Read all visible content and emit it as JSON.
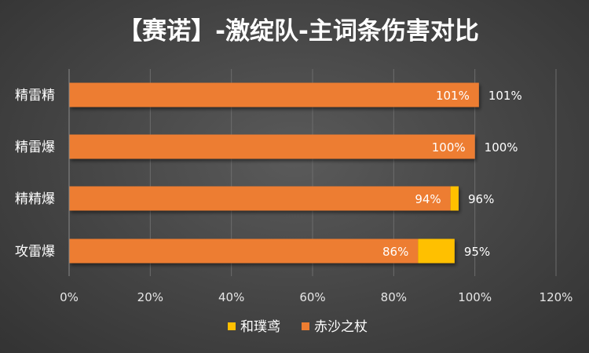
{
  "chart_data": {
    "type": "bar",
    "orientation": "horizontal",
    "stacked": true,
    "title": "【赛诺】-激绽队-主词条伤害对比",
    "categories": [
      "精雷精",
      "精雷爆",
      "精精爆",
      "攻雷爆"
    ],
    "series": [
      {
        "name": "赤沙之杖",
        "color": "#ED7D31",
        "values": [
          101,
          100,
          94,
          86
        ],
        "labels": [
          "101%",
          "100%",
          "94%",
          "86%"
        ]
      },
      {
        "name": "和璞鸢",
        "color": "#FFC000",
        "values": [
          0,
          0,
          2,
          9
        ]
      }
    ],
    "totals": [
      101,
      100,
      96,
      95
    ],
    "total_labels": [
      "101%",
      "100%",
      "96%",
      "95%"
    ],
    "xlim": [
      0,
      120
    ],
    "x_ticks": [
      "0%",
      "20%",
      "40%",
      "60%",
      "80%",
      "100%",
      "120%"
    ],
    "grid": true,
    "legend_order": [
      "和璞鸢",
      "赤沙之杖"
    ],
    "legend_position": "bottom"
  }
}
